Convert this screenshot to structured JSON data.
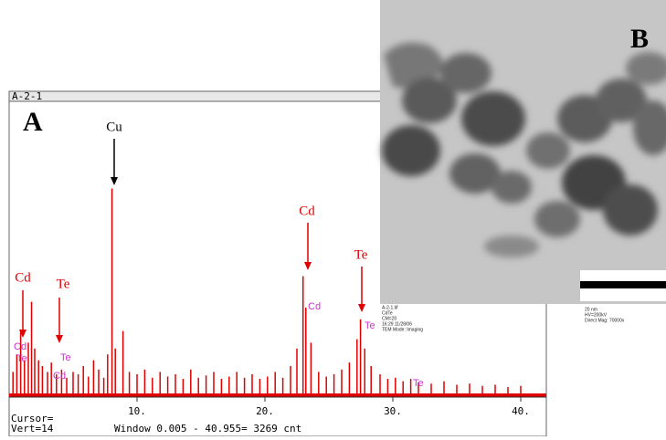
{
  "chart_data": {
    "type": "bar",
    "window_title": "A-2-1",
    "panel_label": "A",
    "color": "#e00000",
    "x": [
      0.3,
      0.6,
      0.9,
      1.2,
      1.5,
      1.75,
      2.0,
      2.3,
      2.6,
      3.0,
      3.3,
      3.7,
      4.1,
      4.5,
      5.0,
      5.4,
      5.8,
      6.2,
      6.6,
      7.0,
      7.4,
      7.7,
      8.04,
      8.3,
      8.9,
      9.4,
      10.0,
      10.6,
      11.2,
      11.8,
      12.4,
      13.0,
      13.6,
      14.2,
      14.8,
      15.4,
      16.0,
      16.6,
      17.2,
      17.8,
      18.4,
      19.0,
      19.6,
      20.2,
      20.8,
      21.4,
      22.0,
      22.5,
      22.98,
      23.2,
      23.6,
      24.2,
      24.8,
      25.4,
      26.0,
      26.6,
      27.2,
      27.47,
      27.8,
      28.3,
      29.0,
      29.6,
      30.2,
      30.8,
      31.4,
      32.0,
      33.0,
      34.0,
      35.0,
      36.0,
      37.0,
      38.0,
      39.0,
      40.0
    ],
    "values": [
      20,
      35,
      55,
      30,
      45,
      80,
      40,
      30,
      25,
      20,
      28,
      18,
      22,
      15,
      20,
      18,
      25,
      16,
      30,
      22,
      15,
      35,
      177,
      40,
      55,
      20,
      18,
      22,
      15,
      20,
      16,
      18,
      14,
      22,
      15,
      17,
      20,
      14,
      16,
      20,
      15,
      18,
      14,
      16,
      20,
      15,
      25,
      40,
      102,
      75,
      45,
      20,
      16,
      18,
      22,
      28,
      48,
      65,
      40,
      25,
      18,
      14,
      15,
      12,
      14,
      11,
      10,
      12,
      9,
      10,
      8,
      9,
      7,
      8
    ],
    "xlim": [
      0,
      41.6
    ],
    "ylim": [
      0,
      250
    ],
    "xticks": [
      {
        "value": 10,
        "label": "10."
      },
      {
        "value": 20,
        "label": "20."
      },
      {
        "value": 30,
        "label": "30."
      },
      {
        "value": 40,
        "label": "40."
      }
    ],
    "peak_labels": [
      "Cu",
      "Cd",
      "Te",
      "Cd",
      "Te"
    ],
    "element_marks": [
      "Cd",
      "Te",
      "Cd",
      "Te",
      "Te",
      "Cd",
      "Te"
    ],
    "status": [
      "Cursor=",
      "Vert=14",
      "Window 0.005 - 40.955=  3269 cnt"
    ]
  },
  "image_panel": {
    "label": "B",
    "info_left": [
      "A-2-1.tif",
      "CdTe",
      "CM=20",
      "16:29 11/28/06",
      "TEM Mode: Imaging"
    ],
    "info_right": [
      "20 nm",
      "HV=200kV",
      "Direct Mag: 70000x"
    ]
  }
}
